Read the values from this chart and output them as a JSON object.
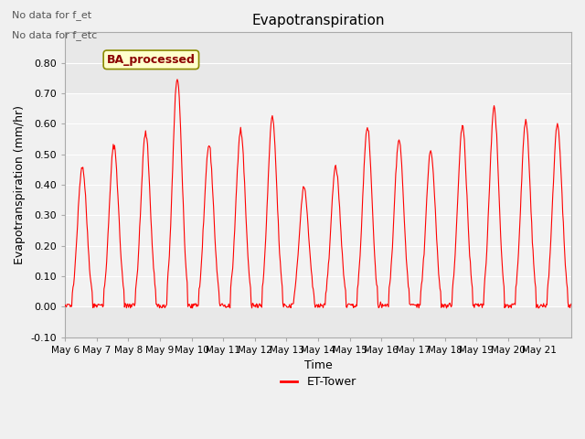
{
  "title": "Evapotranspiration",
  "xlabel": "Time",
  "ylabel": "Evapotranspiration (mm/hr)",
  "ylim": [
    -0.1,
    0.9
  ],
  "yticks": [
    -0.1,
    0.0,
    0.1,
    0.2,
    0.3,
    0.4,
    0.5,
    0.6,
    0.7,
    0.8
  ],
  "line_color": "red",
  "line_label": "ET-Tower",
  "bg_color": "#f0f0f0",
  "plot_bg_color": "#e8e8e8",
  "annotation_text_1": "No data for f_et",
  "annotation_text_2": "No data for f_etc",
  "box_label": "BA_processed",
  "box_facecolor": "#ffffcc",
  "box_edgecolor": "#8b8b00",
  "box_text_color": "#8b0000",
  "tick_labels": [
    "May 6",
    "May 7",
    "May 8",
    "May 9",
    "May 10",
    "May 11",
    "May 12",
    "May 13",
    "May 14",
    "May 15",
    "May 16",
    "May 17",
    "May 18",
    "May 19",
    "May 20",
    "May 21"
  ],
  "daily_peaks": [
    0.46,
    0.53,
    0.57,
    0.75,
    0.53,
    0.58,
    0.62,
    0.39,
    0.46,
    0.59,
    0.55,
    0.51,
    0.59,
    0.65,
    0.61,
    0.6
  ],
  "n_days": 16,
  "pts_per_day": 48
}
